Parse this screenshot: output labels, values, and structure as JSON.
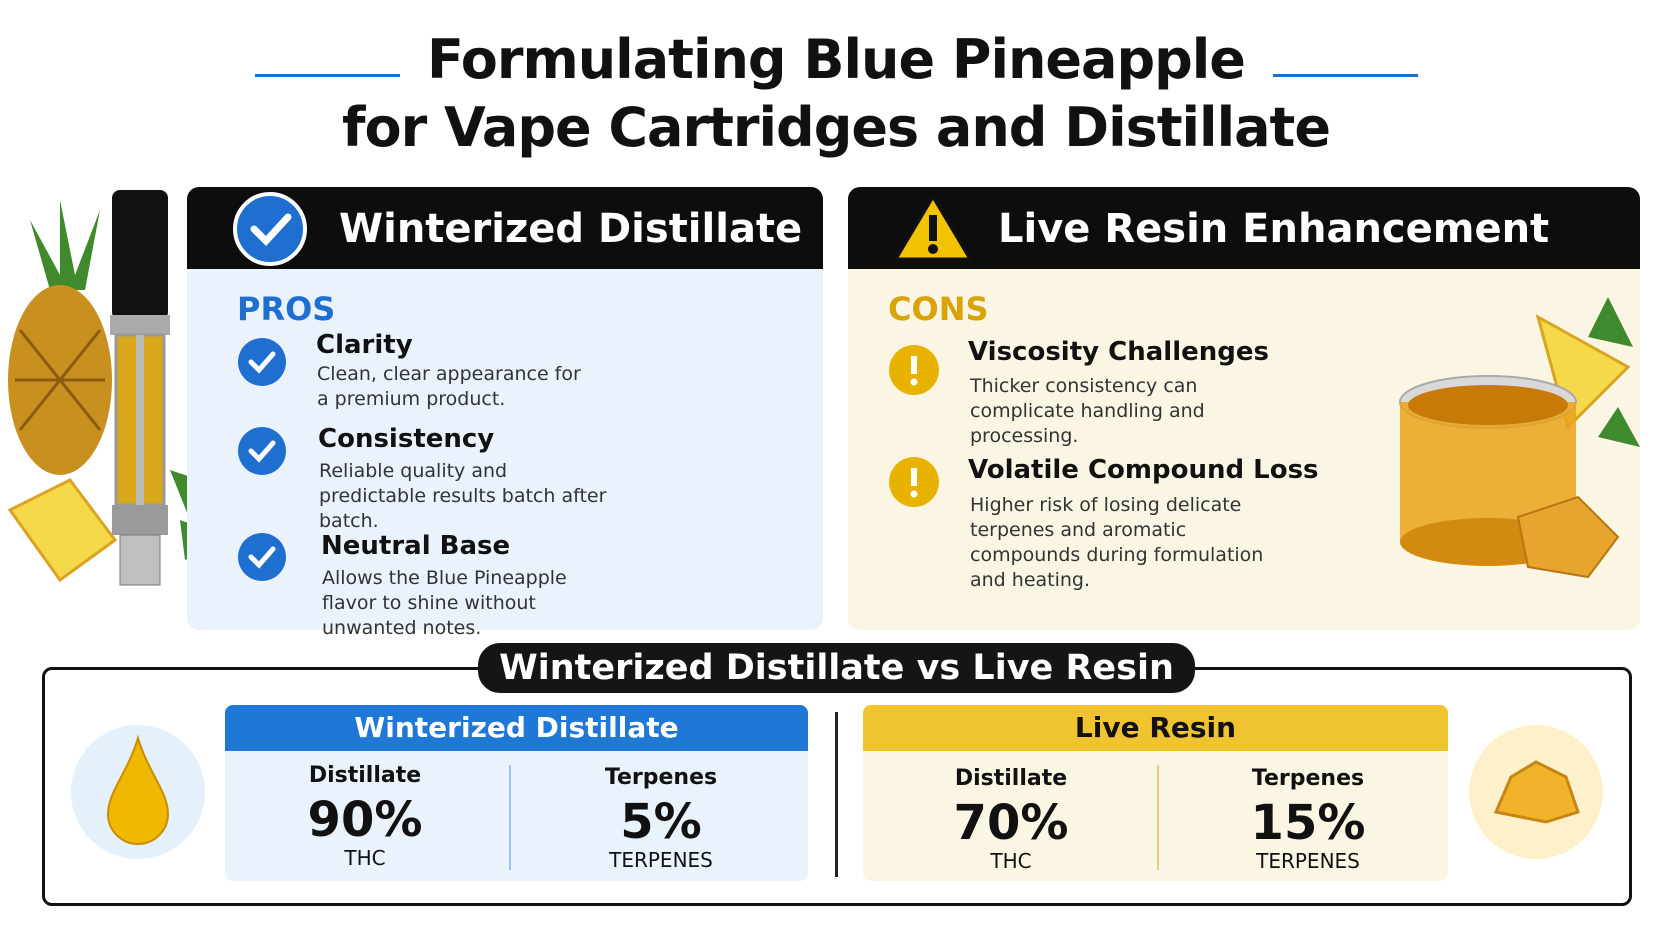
{
  "header": {
    "title_lines": [
      "Formulating Blue Pineapple",
      "for Vape Cartridges and Distillate"
    ]
  },
  "pros_panel": {
    "heading": "Winterized Distillate",
    "section": "PROS",
    "items": [
      {
        "title": "Clarity",
        "text": "Clean, clear appearance for a premium product."
      },
      {
        "title": "Consistency",
        "text": "Reliable quality and predictable results batch after batch."
      },
      {
        "title": "Neutral Base",
        "text": "Allows the Blue Pineapple flavor to shine without unwanted notes."
      }
    ]
  },
  "cons_panel": {
    "heading": "Live Resin Enhancement",
    "section": "CONS",
    "items": [
      {
        "title": "Viscosity Challenges",
        "text": "Thicker consistency can complicate handling and processing."
      },
      {
        "title": "Volatile Compound Loss",
        "text": "Higher risk of losing delicate terpenes and aromatic compounds during formulation and heating."
      }
    ]
  },
  "comparison": {
    "title": "Winterized Distillate vs Live Resin",
    "cards": [
      {
        "title": "Winterized Distillate",
        "stats": [
          {
            "label": "Distillate",
            "value": "90%",
            "unit": "THC"
          },
          {
            "label": "Terpenes",
            "value": "5%",
            "unit": "TERPENES"
          }
        ]
      },
      {
        "title": "Live Resin",
        "stats": [
          {
            "label": "Distillate",
            "value": "70%",
            "unit": "THC"
          },
          {
            "label": "Terpenes",
            "value": "15%",
            "unit": "TERPENES"
          }
        ]
      }
    ]
  }
}
